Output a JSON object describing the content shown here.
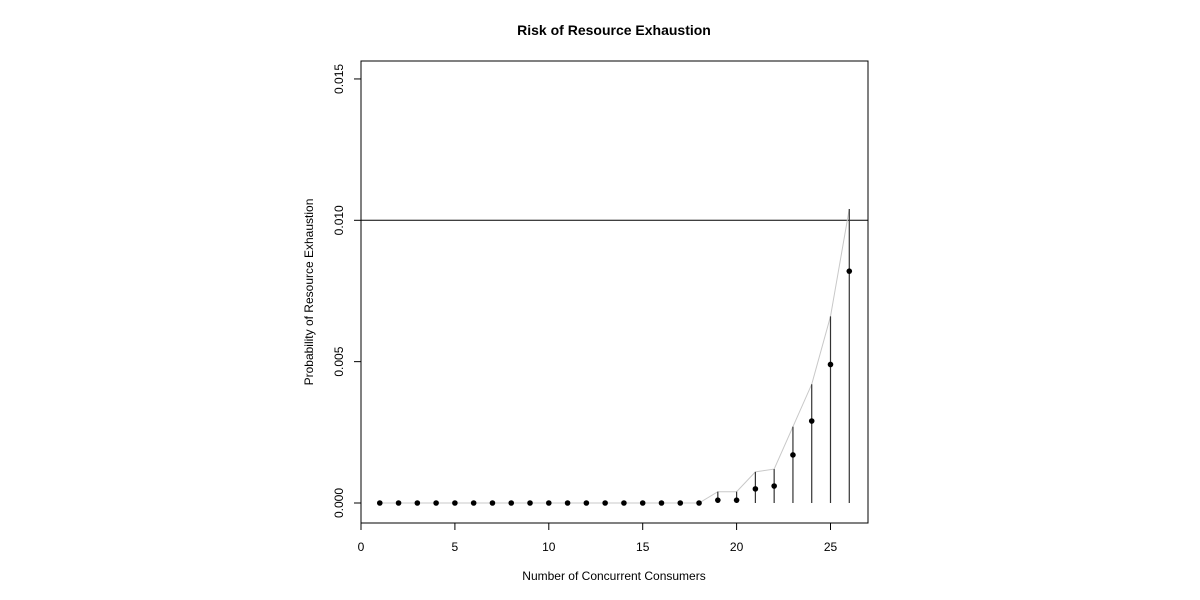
{
  "chart_data": {
    "type": "scatter",
    "title": "Risk of Resource Exhaustion",
    "xlabel": "Number of Concurrent Consumers",
    "ylabel": "Probability of Resource Exhaustion",
    "xlim": [
      0,
      27
    ],
    "ylim": [
      -0.0007,
      0.0157
    ],
    "xticks": [
      0,
      5,
      10,
      15,
      20,
      25
    ],
    "yticks": [
      0.0,
      0.005,
      0.01,
      0.015
    ],
    "ytick_labels": [
      "0.000",
      "0.005",
      "0.010",
      "0.015"
    ],
    "grid": false,
    "legend": null,
    "reference_line": {
      "y": 0.01,
      "orientation": "horizontal"
    },
    "x": [
      1,
      2,
      3,
      4,
      5,
      6,
      7,
      8,
      9,
      10,
      11,
      12,
      13,
      14,
      15,
      16,
      17,
      18,
      19,
      20,
      21,
      22,
      23,
      24,
      25,
      26
    ],
    "series": [
      {
        "name": "estimate",
        "style": "points",
        "values": [
          0,
          0,
          0,
          0,
          0,
          0,
          0,
          0,
          0,
          0,
          0,
          0,
          0,
          0,
          0,
          0,
          0,
          0,
          0.0001,
          0.0001,
          0.0005,
          0.0006,
          0.0017,
          0.0029,
          0.0049,
          0.0082
        ]
      },
      {
        "name": "upper_bound",
        "style": "vertical bars from 0 + grey line",
        "values": [
          0,
          0,
          0,
          0,
          0,
          0,
          0,
          0,
          0,
          0,
          0,
          0,
          0,
          0,
          0,
          0,
          0,
          0,
          0.0004,
          0.0004,
          0.0011,
          0.0012,
          0.0027,
          0.0042,
          0.0066,
          0.0104
        ]
      }
    ]
  }
}
